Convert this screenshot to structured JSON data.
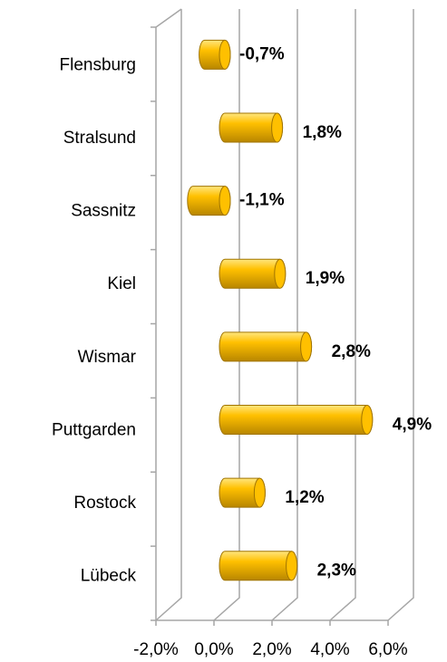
{
  "chart_data": {
    "type": "bar",
    "orientation": "horizontal",
    "categories": [
      "Flensburg",
      "Stralsund",
      "Sassnitz",
      "Kiel",
      "Wismar",
      "Puttgarden",
      "Rostock",
      "Lübeck"
    ],
    "values": [
      -0.7,
      1.8,
      -1.1,
      1.9,
      2.8,
      4.9,
      1.2,
      2.3
    ],
    "value_labels": [
      "-0,7%",
      "1,8%",
      "-1,1%",
      "1,9%",
      "2,8%",
      "4,9%",
      "1,2%",
      "2,3%"
    ],
    "color": "#ffc000",
    "label_color": "#000000",
    "negative_label_color": "#ff0000",
    "xlim": [
      -2,
      6
    ],
    "xticks": [
      {
        "value": -2,
        "label": "-2,0%"
      },
      {
        "value": 0,
        "label": "0,0%"
      },
      {
        "value": 2,
        "label": "2,0%"
      },
      {
        "value": 4,
        "label": "4,0%"
      },
      {
        "value": 6,
        "label": "6,0%"
      }
    ],
    "grid": true
  }
}
